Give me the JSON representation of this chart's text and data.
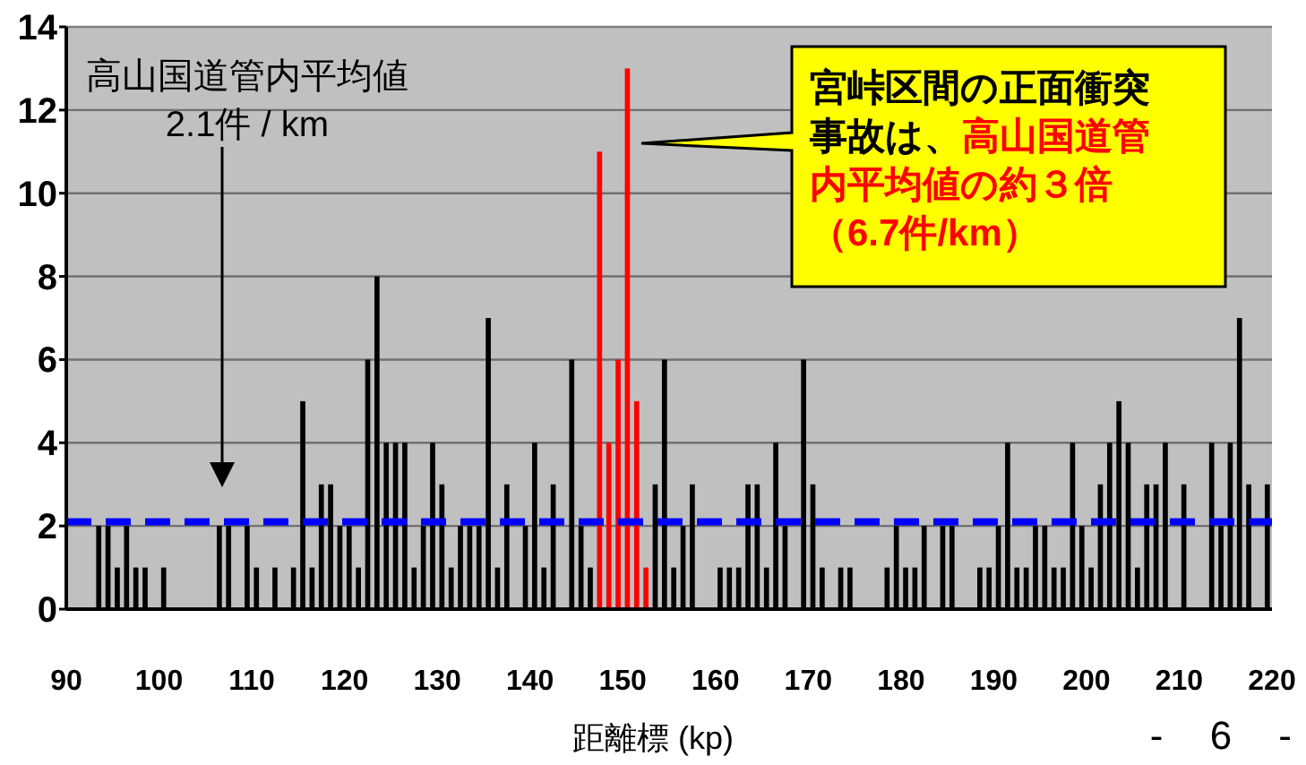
{
  "chart_data": {
    "type": "bar",
    "xlabel": "距離標 (kp)",
    "x": [
      93.5,
      94.5,
      95.5,
      96.5,
      97.5,
      98.5,
      100.5,
      106.5,
      107.5,
      109.5,
      110.5,
      112.5,
      114.5,
      115.5,
      116.5,
      117.5,
      118.5,
      119.5,
      120.5,
      121.5,
      122.5,
      123.5,
      124.5,
      125.5,
      126.5,
      127.5,
      128.5,
      129.5,
      130.5,
      131.5,
      132.5,
      133.5,
      134.5,
      135.5,
      136.5,
      137.5,
      139.5,
      140.5,
      141.5,
      142.5,
      144.5,
      145.5,
      146.5,
      147.5,
      148.5,
      149.5,
      150.5,
      151.5,
      152.5,
      153.5,
      154.5,
      155.5,
      156.5,
      157.5,
      160.5,
      161.5,
      162.5,
      163.5,
      164.5,
      165.5,
      166.5,
      167.5,
      169.5,
      170.5,
      171.5,
      173.5,
      174.5,
      178.5,
      179.5,
      180.5,
      181.5,
      182.5,
      184.5,
      185.5,
      188.5,
      189.5,
      190.5,
      191.5,
      192.5,
      193.5,
      194.5,
      195.5,
      196.5,
      197.5,
      198.5,
      199.5,
      200.5,
      201.5,
      202.5,
      203.5,
      204.5,
      205.5,
      206.5,
      207.5,
      208.5,
      210.5,
      213.5,
      214.5,
      215.5,
      216.5,
      217.5,
      219.5
    ],
    "values": [
      2,
      2,
      1,
      2,
      1,
      1,
      1,
      2,
      2,
      2,
      1,
      1,
      1,
      5,
      1,
      3,
      3,
      2,
      2,
      1,
      6,
      8,
      4,
      4,
      4,
      1,
      2,
      4,
      3,
      1,
      2,
      2,
      2,
      7,
      1,
      3,
      2,
      4,
      1,
      3,
      6,
      2,
      1,
      11,
      4,
      6,
      13,
      5,
      1,
      3,
      6,
      1,
      2,
      3,
      1,
      1,
      1,
      3,
      3,
      1,
      4,
      2,
      6,
      3,
      1,
      1,
      1,
      1,
      2,
      1,
      1,
      2,
      2,
      2,
      1,
      1,
      2,
      4,
      1,
      1,
      2,
      2,
      1,
      1,
      4,
      2,
      1,
      3,
      4,
      5,
      4,
      1,
      3,
      3,
      4,
      3,
      4,
      2,
      4,
      7,
      3,
      3
    ],
    "colors": [
      "#000000",
      "#000000",
      "#000000",
      "#000000",
      "#000000",
      "#000000",
      "#000000",
      "#000000",
      "#000000",
      "#000000",
      "#000000",
      "#000000",
      "#000000",
      "#000000",
      "#000000",
      "#000000",
      "#000000",
      "#000000",
      "#000000",
      "#000000",
      "#000000",
      "#000000",
      "#000000",
      "#000000",
      "#000000",
      "#000000",
      "#000000",
      "#000000",
      "#000000",
      "#000000",
      "#000000",
      "#000000",
      "#000000",
      "#000000",
      "#000000",
      "#000000",
      "#000000",
      "#000000",
      "#000000",
      "#000000",
      "#000000",
      "#000000",
      "#000000",
      "#ff0000",
      "#ff0000",
      "#ff0000",
      "#ff0000",
      "#ff0000",
      "#ff0000",
      "#000000",
      "#000000",
      "#000000",
      "#000000",
      "#000000",
      "#000000",
      "#000000",
      "#000000",
      "#000000",
      "#000000",
      "#000000",
      "#000000",
      "#000000",
      "#000000",
      "#000000",
      "#000000",
      "#000000",
      "#000000",
      "#000000",
      "#000000",
      "#000000",
      "#000000",
      "#000000",
      "#000000",
      "#000000",
      "#000000",
      "#000000",
      "#000000",
      "#000000",
      "#000000",
      "#000000",
      "#000000",
      "#000000",
      "#000000",
      "#000000",
      "#000000",
      "#000000",
      "#000000",
      "#000000",
      "#000000",
      "#000000",
      "#000000",
      "#000000",
      "#000000",
      "#000000",
      "#000000",
      "#000000",
      "#000000",
      "#000000",
      "#000000",
      "#000000",
      "#000000",
      "#000000"
    ],
    "xlim": [
      90,
      220
    ],
    "xticks": [
      90,
      100,
      110,
      120,
      130,
      140,
      150,
      160,
      170,
      180,
      190,
      200,
      210,
      220
    ],
    "ylim": [
      0,
      14
    ],
    "yticks": [
      0,
      2,
      4,
      6,
      8,
      10,
      12,
      14
    ],
    "grid": "y",
    "ref_lines": [
      {
        "axis": "y",
        "value": 2.1,
        "color": "#0000ff",
        "line_style": "dashed"
      }
    ],
    "annotations": [
      "高山国道管内平均値\n2.1件 / km",
      "宮峠区間の正面衝突事故は、",
      "高山国道管内平均値の約３倍（6.7件/km）",
      "- 6 -"
    ]
  }
}
